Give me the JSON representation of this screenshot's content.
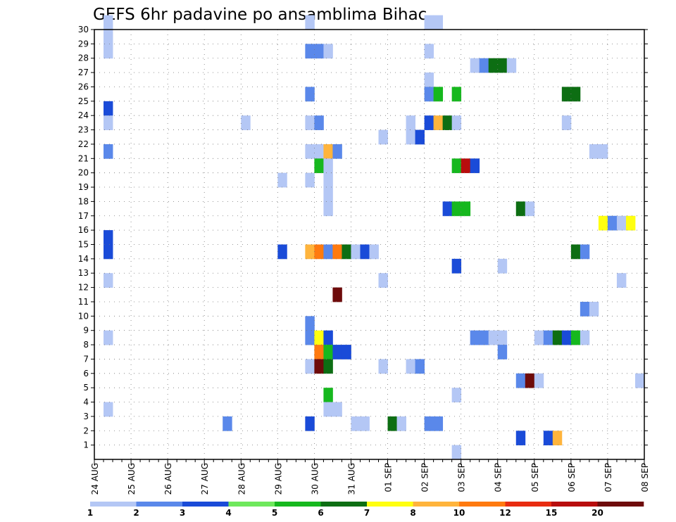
{
  "chart_data": {
    "type": "heatmap",
    "title": "GEFS 6hr padavine po ansamblima Bihac",
    "xlabel": "",
    "ylabel": "",
    "x_tick_labels": [
      "24 AUG",
      "25 AUG",
      "26 AUG",
      "27 AUG",
      "28 AUG",
      "29 AUG",
      "30 AUG",
      "31 AUG",
      "01 SEP",
      "02 SEP",
      "03 SEP",
      "04 SEP",
      "05 SEP",
      "06 SEP",
      "07 SEP",
      "08 SEP"
    ],
    "y_tick_labels": [
      "1",
      "2",
      "3",
      "4",
      "5",
      "6",
      "7",
      "8",
      "9",
      "10",
      "11",
      "12",
      "13",
      "14",
      "15",
      "16",
      "17",
      "18",
      "19",
      "20",
      "21",
      "22",
      "23",
      "24",
      "25",
      "26",
      "27",
      "28",
      "29",
      "30"
    ],
    "x_range_steps": [
      0,
      60
    ],
    "y_range": [
      0,
      30
    ],
    "grid": true,
    "colorbar": {
      "levels": [
        "1",
        "2",
        "3",
        "4",
        "5",
        "6",
        "7",
        "8",
        "10",
        "12",
        "15",
        "20"
      ],
      "colors": [
        "#b4c7f5",
        "#5a88ea",
        "#1a4bd8",
        "#6ee85c",
        "#16b81e",
        "#0d6e13",
        "#ffff10",
        "#ffb43c",
        "#ff7a0f",
        "#e82c10",
        "#b80d0d",
        "#6e0b0b"
      ]
    },
    "cells": [
      [
        1,
        29,
        0
      ],
      [
        1,
        28,
        0
      ],
      [
        1,
        27,
        0
      ],
      [
        1,
        23,
        2
      ],
      [
        1,
        22,
        0
      ],
      [
        1,
        20,
        1
      ],
      [
        1,
        14,
        2
      ],
      [
        1,
        13,
        2
      ],
      [
        1,
        11,
        0
      ],
      [
        1,
        7,
        0
      ],
      [
        1,
        2,
        0
      ],
      [
        14,
        1,
        1
      ],
      [
        16,
        22,
        0
      ],
      [
        20,
        18,
        0
      ],
      [
        20,
        13,
        2
      ],
      [
        23,
        29,
        0
      ],
      [
        23,
        27,
        1
      ],
      [
        23,
        24,
        1
      ],
      [
        23,
        22,
        0
      ],
      [
        23,
        20,
        0
      ],
      [
        23,
        18,
        0
      ],
      [
        23,
        13,
        7
      ],
      [
        23,
        8,
        1
      ],
      [
        23,
        7,
        1
      ],
      [
        23,
        5,
        0
      ],
      [
        23,
        1,
        2
      ],
      [
        24,
        27,
        1
      ],
      [
        24,
        22,
        1
      ],
      [
        24,
        20,
        0
      ],
      [
        24,
        19,
        4
      ],
      [
        24,
        13,
        8
      ],
      [
        24,
        7,
        6
      ],
      [
        24,
        6,
        8
      ],
      [
        24,
        5,
        11
      ],
      [
        25,
        27,
        0
      ],
      [
        25,
        20,
        7
      ],
      [
        25,
        19,
        0
      ],
      [
        25,
        18,
        0
      ],
      [
        25,
        17,
        0
      ],
      [
        25,
        16,
        0
      ],
      [
        25,
        13,
        1
      ],
      [
        25,
        7,
        2
      ],
      [
        25,
        6,
        4
      ],
      [
        25,
        5,
        5
      ],
      [
        25,
        3,
        4
      ],
      [
        25,
        2,
        0
      ],
      [
        26,
        20,
        1
      ],
      [
        26,
        13,
        8
      ],
      [
        26,
        10,
        11
      ],
      [
        26,
        6,
        2
      ],
      [
        26,
        2,
        0
      ],
      [
        27,
        13,
        5
      ],
      [
        27,
        6,
        2
      ],
      [
        28,
        13,
        0
      ],
      [
        28,
        1,
        0
      ],
      [
        29,
        13,
        2
      ],
      [
        29,
        1,
        0
      ],
      [
        30,
        13,
        0
      ],
      [
        31,
        21,
        0
      ],
      [
        31,
        11,
        0
      ],
      [
        31,
        5,
        0
      ],
      [
        32,
        1,
        5
      ],
      [
        33,
        1,
        0
      ],
      [
        34,
        22,
        0
      ],
      [
        34,
        21,
        0
      ],
      [
        34,
        5,
        0
      ],
      [
        35,
        21,
        2
      ],
      [
        35,
        5,
        1
      ],
      [
        36,
        29,
        0
      ],
      [
        36,
        27,
        0
      ],
      [
        36,
        25,
        0
      ],
      [
        36,
        24,
        1
      ],
      [
        36,
        22,
        2
      ],
      [
        36,
        1,
        1
      ],
      [
        37,
        29,
        0
      ],
      [
        37,
        24,
        4
      ],
      [
        37,
        22,
        7
      ],
      [
        37,
        1,
        1
      ],
      [
        38,
        22,
        5
      ],
      [
        38,
        16,
        2
      ],
      [
        39,
        24,
        4
      ],
      [
        39,
        22,
        0
      ],
      [
        39,
        19,
        4
      ],
      [
        39,
        16,
        4
      ],
      [
        39,
        12,
        2
      ],
      [
        39,
        3,
        0
      ],
      [
        39,
        -1,
        0
      ],
      [
        40,
        19,
        10
      ],
      [
        40,
        16,
        4
      ],
      [
        41,
        26,
        0
      ],
      [
        41,
        19,
        2
      ],
      [
        41,
        7,
        1
      ],
      [
        42,
        26,
        1
      ],
      [
        42,
        7,
        1
      ],
      [
        43,
        26,
        5
      ],
      [
        43,
        7,
        0
      ],
      [
        44,
        26,
        5
      ],
      [
        44,
        7,
        0
      ],
      [
        45,
        26,
        0
      ],
      [
        44,
        12,
        0
      ],
      [
        44,
        6,
        1
      ],
      [
        46,
        4,
        1
      ],
      [
        47,
        4,
        11
      ],
      [
        48,
        4,
        0
      ],
      [
        46,
        0,
        2
      ],
      [
        46,
        16,
        5
      ],
      [
        47,
        16,
        0
      ],
      [
        48,
        7,
        0
      ],
      [
        49,
        7,
        1
      ],
      [
        49,
        0,
        2
      ],
      [
        50,
        7,
        5
      ],
      [
        50,
        0,
        7
      ],
      [
        51,
        24,
        5
      ],
      [
        51,
        22,
        0
      ],
      [
        51,
        7,
        2
      ],
      [
        52,
        24,
        5
      ],
      [
        52,
        13,
        5
      ],
      [
        52,
        7,
        4
      ],
      [
        53,
        13,
        1
      ],
      [
        53,
        9,
        1
      ],
      [
        53,
        7,
        0
      ],
      [
        54,
        20,
        0
      ],
      [
        54,
        9,
        0
      ],
      [
        55,
        20,
        0
      ],
      [
        55,
        15,
        6
      ],
      [
        56,
        15,
        1
      ],
      [
        57,
        15,
        0
      ],
      [
        57,
        11,
        0
      ],
      [
        58,
        15,
        6
      ],
      [
        59,
        4,
        0
      ]
    ]
  }
}
